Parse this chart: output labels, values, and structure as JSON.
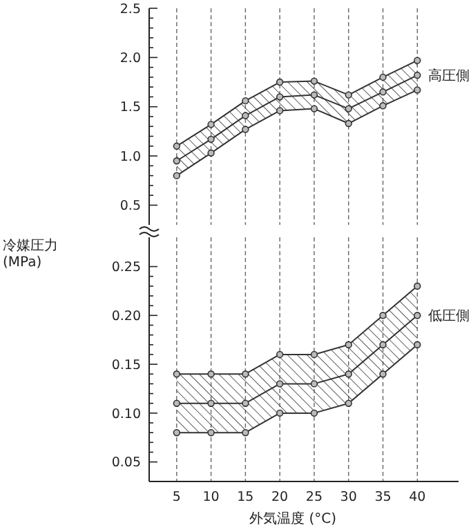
{
  "chart_data": [
    {
      "type": "line",
      "xticks": [
        5,
        10,
        15,
        20,
        25,
        30,
        35,
        40
      ],
      "ylim": [
        0.3,
        2.5
      ],
      "yticks": [
        {
          "value": 0.5,
          "label": "0.5"
        },
        {
          "value": 0.6,
          "label": null
        },
        {
          "value": 0.7,
          "label": null
        },
        {
          "value": 0.8,
          "label": null
        },
        {
          "value": 0.9,
          "label": null
        },
        {
          "value": 1,
          "label": "1.0"
        },
        {
          "value": 1.1,
          "label": null
        },
        {
          "value": 1.2,
          "label": null
        },
        {
          "value": 1.3,
          "label": null
        },
        {
          "value": 1.4,
          "label": null
        },
        {
          "value": 1.5,
          "label": "1.5"
        },
        {
          "value": 1.6,
          "label": null
        },
        {
          "value": 1.7,
          "label": null
        },
        {
          "value": 1.8,
          "label": null
        },
        {
          "value": 1.9,
          "label": null
        },
        {
          "value": 2,
          "label": "2.0"
        },
        {
          "value": 2.1,
          "label": null
        },
        {
          "value": 2.2,
          "label": null
        },
        {
          "value": 2.3,
          "label": null
        },
        {
          "value": 2.4,
          "label": null
        },
        {
          "value": 2.5,
          "label": "2.5"
        }
      ],
      "tick_labels": "y",
      "grid": "x",
      "marker": "circle",
      "line_style": "solid",
      "x": [
        5,
        10,
        15,
        20,
        25,
        30,
        35,
        40
      ],
      "series": [
        {
          "color": "#333333",
          "values": [
            0.8,
            1.03,
            1.27,
            1.46,
            1.48,
            1.33,
            1.51,
            1.67
          ]
        },
        {
          "name": "高圧側",
          "color": "#333333",
          "values": [
            0.95,
            1.17,
            1.41,
            1.6,
            1.62,
            1.48,
            1.65,
            1.82
          ],
          "lower": [
            0.8,
            1.03,
            1.27,
            1.46,
            1.48,
            1.33,
            1.51,
            1.67
          ],
          "upper": [
            1.1,
            1.32,
            1.56,
            1.75,
            1.76,
            1.62,
            1.8,
            1.97
          ]
        },
        {
          "color": "#333333",
          "values": [
            1.1,
            1.32,
            1.56,
            1.75,
            1.76,
            1.62,
            1.8,
            1.97
          ]
        }
      ]
    },
    {
      "type": "line",
      "xlim": [
        1,
        46
      ],
      "xticks": [
        5,
        10,
        15,
        20,
        25,
        30,
        35,
        40
      ],
      "ylim": [
        0.03,
        0.28
      ],
      "yticks": [
        {
          "value": 0.05,
          "label": "0.05"
        },
        {
          "value": 0.06,
          "label": null
        },
        {
          "value": 0.07,
          "label": null
        },
        {
          "value": 0.08,
          "label": null
        },
        {
          "value": 0.09,
          "label": null
        },
        {
          "value": 0.1,
          "label": "0.10"
        },
        {
          "value": 0.11,
          "label": null
        },
        {
          "value": 0.12,
          "label": null
        },
        {
          "value": 0.13,
          "label": null
        },
        {
          "value": 0.14,
          "label": null
        },
        {
          "value": 0.15,
          "label": "0.15"
        },
        {
          "value": 0.16,
          "label": null
        },
        {
          "value": 0.17,
          "label": null
        },
        {
          "value": 0.18,
          "label": null
        },
        {
          "value": 0.19,
          "label": null
        },
        {
          "value": 0.2,
          "label": "0.20"
        },
        {
          "value": 0.21,
          "label": null
        },
        {
          "value": 0.22,
          "label": null
        },
        {
          "value": 0.23,
          "label": null
        },
        {
          "value": 0.24,
          "label": null
        },
        {
          "value": 0.25,
          "label": "0.25"
        }
      ],
      "grid": "x",
      "marker": "circle",
      "line_style": "solid",
      "xlabel": "外気温度 (°C)",
      "ylabel": "冷媒圧力\n(MPa)",
      "x": [
        5,
        10,
        15,
        20,
        25,
        30,
        35,
        40
      ],
      "series": [
        {
          "color": "#333333",
          "values": [
            0.08,
            0.08,
            0.08,
            0.1,
            0.1,
            0.11,
            0.14,
            0.17
          ]
        },
        {
          "name": "低圧側",
          "color": "#333333",
          "values": [
            0.11,
            0.11,
            0.11,
            0.13,
            0.13,
            0.14,
            0.17,
            0.2
          ],
          "lower": [
            0.08,
            0.08,
            0.08,
            0.1,
            0.1,
            0.11,
            0.14,
            0.17
          ],
          "upper": [
            0.14,
            0.14,
            0.14,
            0.16,
            0.16,
            0.17,
            0.2,
            0.23
          ]
        },
        {
          "color": "#333333",
          "values": [
            0.14,
            0.14,
            0.14,
            0.16,
            0.16,
            0.17,
            0.2,
            0.23
          ]
        }
      ]
    }
  ]
}
